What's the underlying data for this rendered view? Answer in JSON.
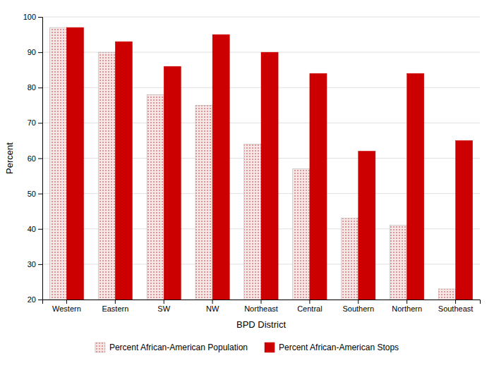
{
  "chart_data": {
    "type": "bar",
    "categories": [
      "Western",
      "Eastern",
      "SW",
      "NW",
      "Northeast",
      "Central",
      "Southern",
      "Northern",
      "Southeast"
    ],
    "series": [
      {
        "name": "Percent African-American Population",
        "color": "#f5e8e8",
        "values": [
          97,
          90,
          78,
          75,
          64,
          57,
          43,
          41,
          23
        ]
      },
      {
        "name": "Percent African-American Stops",
        "color": "#cc0000",
        "values": [
          97,
          93,
          86,
          95,
          90,
          84,
          62,
          84,
          65
        ]
      }
    ],
    "xlabel": "BPD District",
    "ylabel": "Percent",
    "ylim": [
      20,
      100
    ],
    "yticks": [
      20,
      30,
      40,
      50,
      60,
      70,
      80,
      90,
      100
    ],
    "grid": true,
    "legend": "bottom"
  }
}
